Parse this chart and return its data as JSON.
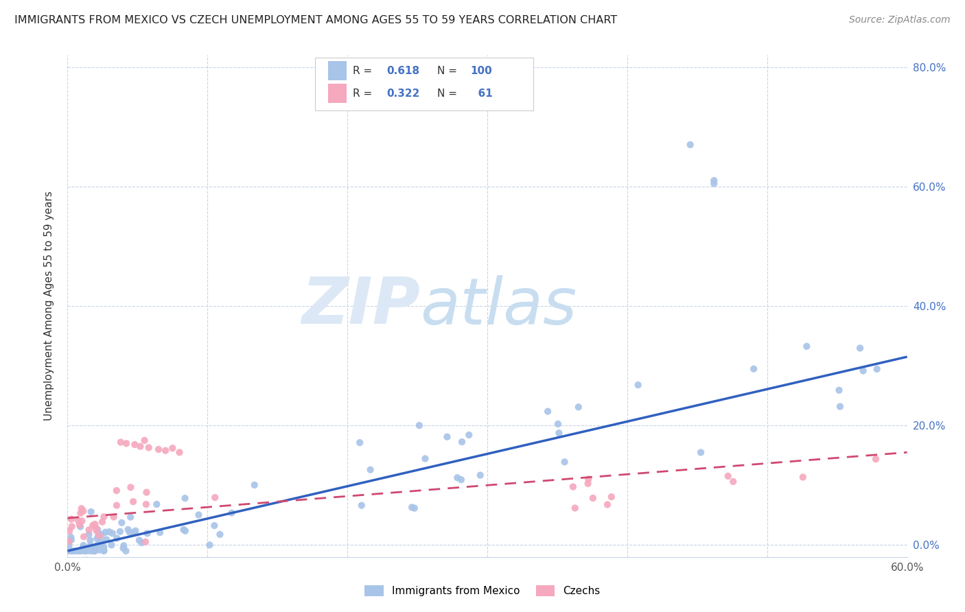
{
  "title": "IMMIGRANTS FROM MEXICO VS CZECH UNEMPLOYMENT AMONG AGES 55 TO 59 YEARS CORRELATION CHART",
  "source": "Source: ZipAtlas.com",
  "ylabel": "Unemployment Among Ages 55 to 59 years",
  "xlim": [
    0.0,
    0.6
  ],
  "ylim": [
    -0.02,
    0.82
  ],
  "plot_ylim": [
    0.0,
    0.8
  ],
  "xticks": [
    0.0,
    0.1,
    0.2,
    0.3,
    0.4,
    0.5,
    0.6
  ],
  "yticks": [
    0.0,
    0.2,
    0.4,
    0.6,
    0.8
  ],
  "xticklabels": [
    "0.0%",
    "",
    "",
    "",
    "",
    "",
    "60.0%"
  ],
  "yticklabels_right": [
    "0.0%",
    "20.0%",
    "40.0%",
    "60.0%",
    "80.0%"
  ],
  "blue_R": 0.618,
  "blue_N": 100,
  "pink_R": 0.322,
  "pink_N": 61,
  "blue_color": "#a8c4e8",
  "pink_color": "#f5a8be",
  "blue_line_color": "#3060c0",
  "pink_line_color": "#d04870",
  "background_color": "#ffffff",
  "grid_color": "#c8d4e8",
  "legend_labels": [
    "Immigrants from Mexico",
    "Czechs"
  ],
  "blue_trend_x0": 0.0,
  "blue_trend_y0": -0.01,
  "blue_trend_x1": 0.6,
  "blue_trend_y1": 0.315,
  "pink_trend_x0": 0.0,
  "pink_trend_y0": 0.045,
  "pink_trend_x1": 0.6,
  "pink_trend_y1": 0.155
}
